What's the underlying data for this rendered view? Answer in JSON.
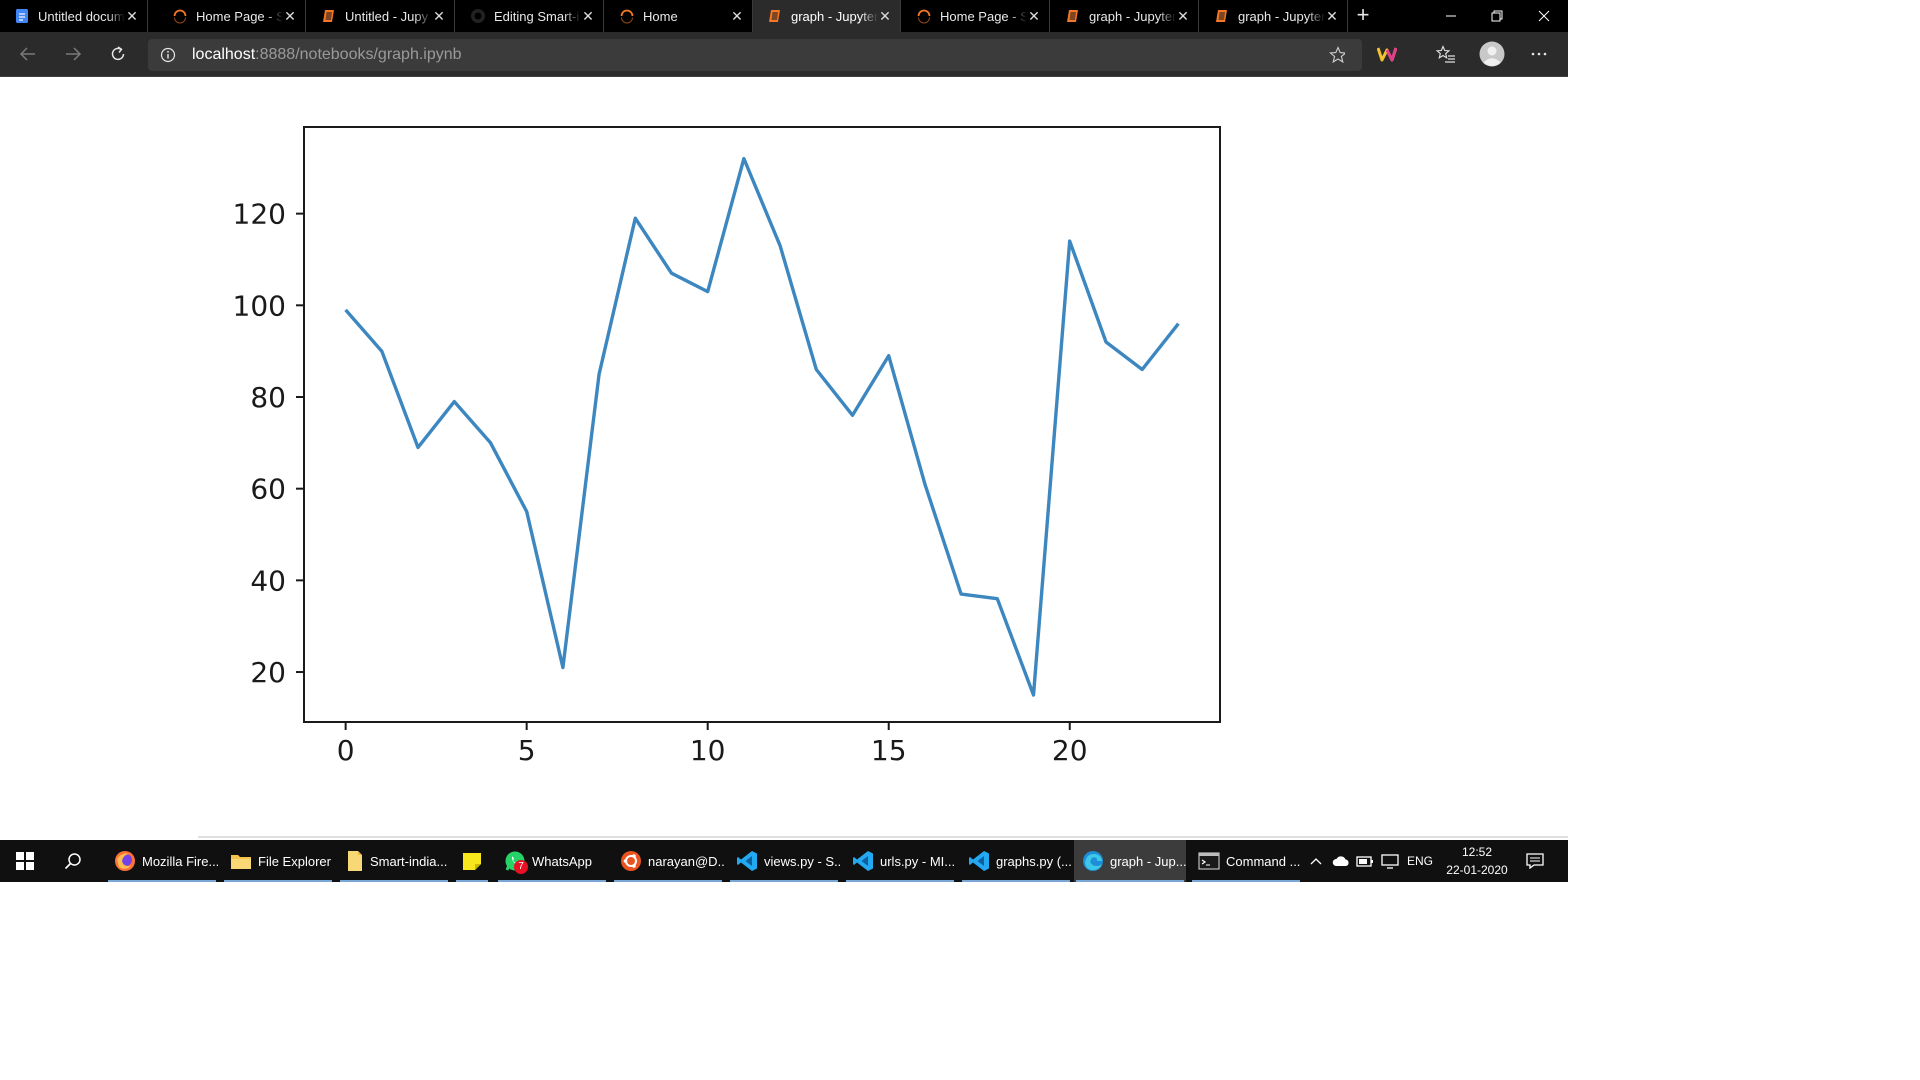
{
  "browser": {
    "tabs": [
      {
        "title": "Untitled docum",
        "icon": "google-docs-icon"
      },
      {
        "title": "Home Page - S",
        "icon": "loading-spinner-icon"
      },
      {
        "title": "Untitled - Jupy",
        "icon": "jupyter-icon"
      },
      {
        "title": "Editing Smart-i",
        "icon": "github-icon"
      },
      {
        "title": "Home",
        "icon": "loading-spinner-icon"
      },
      {
        "title": "graph - Jupyter",
        "icon": "jupyter-icon",
        "active": true
      },
      {
        "title": "Home Page - S",
        "icon": "loading-spinner-icon"
      },
      {
        "title": "graph - Jupyter",
        "icon": "jupyter-icon"
      },
      {
        "title": "graph - Jupyter",
        "icon": "jupyter-icon"
      }
    ],
    "close_glyph": "✕",
    "new_tab_glyph": "+",
    "address": {
      "host": "localhost",
      "rest": ":8888/notebooks/graph.ipynb"
    }
  },
  "chart_data": {
    "type": "line",
    "x": [
      0,
      1,
      2,
      3,
      4,
      5,
      6,
      7,
      8,
      9,
      10,
      11,
      12,
      13,
      14,
      15,
      16,
      17,
      18,
      19,
      20,
      21,
      22,
      23
    ],
    "series": [
      {
        "values": [
          99,
          90,
          69,
          79,
          70,
          55,
          21,
          85,
          119,
          107,
          103,
          132,
          113,
          86,
          76,
          89,
          61,
          37,
          36,
          15,
          114,
          92,
          86,
          96
        ],
        "color": "#3d87c0"
      }
    ],
    "xticks": [
      "0",
      "5",
      "10",
      "15",
      "20"
    ],
    "xtick_values": [
      0,
      5,
      10,
      15,
      20
    ],
    "yticks": [
      "20",
      "40",
      "60",
      "80",
      "100",
      "120"
    ],
    "ytick_values": [
      20,
      40,
      60,
      80,
      100,
      120
    ],
    "xlim": [
      -1.15,
      24.15
    ],
    "ylim": [
      9.1,
      138.9
    ],
    "grid": false,
    "title": "",
    "xlabel": "",
    "ylabel": ""
  },
  "taskbar": {
    "apps": [
      {
        "label": "Mozilla Fire...",
        "icon": "firefox-icon"
      },
      {
        "label": "File Explorer",
        "icon": "folder-icon"
      },
      {
        "label": "Smart-india...",
        "icon": "document-icon"
      },
      {
        "label": "",
        "icon": "sticky-notes-icon"
      },
      {
        "label": "WhatsApp",
        "icon": "whatsapp-icon",
        "badge": "7"
      },
      {
        "label": "narayan@D...",
        "icon": "ubuntu-icon"
      },
      {
        "label": "views.py - S...",
        "icon": "vscode-icon"
      },
      {
        "label": "urls.py - MI...",
        "icon": "vscode-icon"
      },
      {
        "label": "graphs.py (...",
        "icon": "vscode-icon"
      },
      {
        "label": "graph - Jup...",
        "icon": "edge-icon"
      },
      {
        "label": "Command ...",
        "icon": "command-prompt-icon"
      }
    ],
    "tray": {
      "language": "ENG",
      "time": "12:52",
      "date": "22-01-2020"
    }
  }
}
